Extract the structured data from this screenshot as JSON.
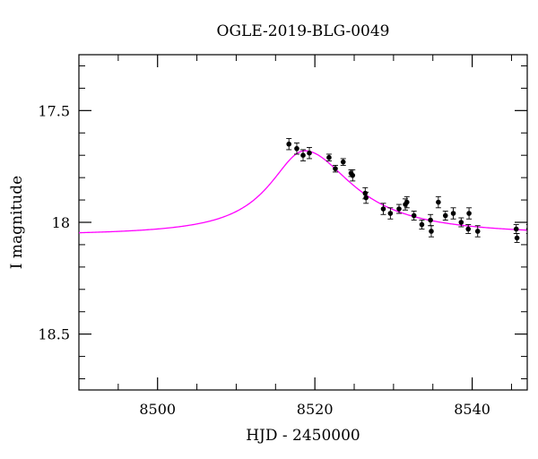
{
  "chart_data": {
    "type": "scatter",
    "title": "OGLE-2019-BLG-0049",
    "xlabel": "HJD - 2450000",
    "ylabel": "I magnitude",
    "xlim": [
      8490,
      8547
    ],
    "ylim": [
      18.75,
      17.25
    ],
    "y_inverted": true,
    "grid": false,
    "x_major_ticks": [
      8500,
      8520,
      8540
    ],
    "x_tick_labels": [
      "8500",
      "8520",
      "8540"
    ],
    "x_minor_ticks": [
      8490,
      8495,
      8505,
      8510,
      8515,
      8525,
      8530,
      8535,
      8545
    ],
    "y_major_ticks": [
      17.5,
      18,
      18.5
    ],
    "y_tick_labels": [
      "17.5",
      "18",
      "18.5"
    ],
    "y_minor_ticks": [
      17.3,
      17.4,
      17.6,
      17.7,
      17.8,
      17.9,
      18.1,
      18.2,
      18.3,
      18.4,
      18.6,
      18.7
    ],
    "colors": {
      "model": "#ff00ff",
      "points": "#000000"
    },
    "model": {
      "name": "",
      "base_mag": 18.06,
      "peak_mag": 17.68,
      "t0": 8518.7,
      "tau_before": 5.5,
      "tau_after": 7.5,
      "shape": "lorentzian"
    },
    "points": [
      {
        "x": 8516.7,
        "y": 17.65,
        "err": 0.025
      },
      {
        "x": 8517.7,
        "y": 17.67,
        "err": 0.025
      },
      {
        "x": 8518.5,
        "y": 17.7,
        "err": 0.025
      },
      {
        "x": 8519.3,
        "y": 17.69,
        "err": 0.025
      },
      {
        "x": 8521.8,
        "y": 17.71,
        "err": 0.015
      },
      {
        "x": 8522.6,
        "y": 17.76,
        "err": 0.015
      },
      {
        "x": 8523.6,
        "y": 17.73,
        "err": 0.015
      },
      {
        "x": 8524.6,
        "y": 17.78,
        "err": 0.015
      },
      {
        "x": 8524.8,
        "y": 17.79,
        "err": 0.025
      },
      {
        "x": 8526.4,
        "y": 17.87,
        "err": 0.025
      },
      {
        "x": 8526.5,
        "y": 17.89,
        "err": 0.025
      },
      {
        "x": 8528.7,
        "y": 17.94,
        "err": 0.025
      },
      {
        "x": 8529.6,
        "y": 17.96,
        "err": 0.025
      },
      {
        "x": 8530.7,
        "y": 17.94,
        "err": 0.02
      },
      {
        "x": 8531.5,
        "y": 17.92,
        "err": 0.025
      },
      {
        "x": 8531.7,
        "y": 17.91,
        "err": 0.025
      },
      {
        "x": 8532.6,
        "y": 17.97,
        "err": 0.02
      },
      {
        "x": 8533.6,
        "y": 18.01,
        "err": 0.02
      },
      {
        "x": 8534.7,
        "y": 17.99,
        "err": 0.025
      },
      {
        "x": 8534.8,
        "y": 18.04,
        "err": 0.025
      },
      {
        "x": 8535.7,
        "y": 17.91,
        "err": 0.025
      },
      {
        "x": 8536.6,
        "y": 17.97,
        "err": 0.02
      },
      {
        "x": 8537.6,
        "y": 17.96,
        "err": 0.025
      },
      {
        "x": 8538.6,
        "y": 18.0,
        "err": 0.02
      },
      {
        "x": 8539.5,
        "y": 18.03,
        "err": 0.02
      },
      {
        "x": 8539.6,
        "y": 17.96,
        "err": 0.025
      },
      {
        "x": 8540.7,
        "y": 18.04,
        "err": 0.025
      },
      {
        "x": 8545.6,
        "y": 18.03,
        "err": 0.02
      },
      {
        "x": 8545.7,
        "y": 18.07,
        "err": 0.02
      },
      {
        "x": 8547.2,
        "y": 18.03,
        "err": 0.02
      },
      {
        "x": 8547.3,
        "y": 18.06,
        "err": 0.02
      }
    ]
  }
}
